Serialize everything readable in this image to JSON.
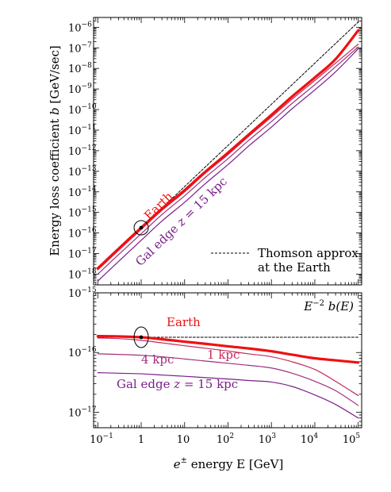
{
  "figure": {
    "xlabel_prefix": "e",
    "xlabel_sup": "±",
    "xlabel_text": " energy E [GeV]",
    "x_tick_labels": [
      "10",
      "−1",
      "1",
      "10",
      "10",
      "2",
      "10",
      "3",
      "10",
      "4",
      "10",
      "5"
    ]
  },
  "chart_data": [
    {
      "type": "line",
      "panel": "top",
      "ylabel_text": "Energy loss coefficient ",
      "ylabel_var": "b",
      "ylabel_unit": " [GeV/sec]",
      "x_scale": "log",
      "y_scale": "log",
      "xlim": [
        0.08,
        120000
      ],
      "ylim": [
        3e-19,
        3e-06
      ],
      "y_tick_exponents": [
        -18,
        -17,
        -16,
        -15,
        -14,
        -13,
        -12,
        -11,
        -10,
        -9,
        -8,
        -7,
        -6
      ],
      "x": [
        0.1,
        0.3,
        1,
        3,
        10,
        30,
        100,
        300,
        1000,
        3000,
        10000,
        30000,
        100000
      ],
      "series": [
        {
          "key": "thomson",
          "color": "#000000",
          "style": "dashed",
          "width": 1.0,
          "values": [
            1.8e-18,
            1.62e-17,
            1.8e-16,
            1.62e-15,
            1.8e-14,
            1.62e-13,
            1.8e-12,
            1.62e-11,
            1.8e-10,
            1.62e-09,
            1.8e-08,
            1.62e-07,
            1.8e-06
          ]
        },
        {
          "key": "earth",
          "name": "Earth",
          "color": "#ee1111",
          "style": "solid",
          "width": 3.2,
          "values": [
            1.9e-18,
            1.71e-17,
            1.8e-16,
            1.5e-15,
            1.2e-14,
            9.5e-14,
            8e-13,
            6.1e-12,
            5.5e-11,
            4.3e-10,
            3.6e-09,
            2.8e-08,
            7e-07
          ]
        },
        {
          "key": "1kpc",
          "color": "#c42a5a",
          "style": "solid",
          "width": 1.2,
          "values": [
            1.6e-18,
            1.42e-17,
            1.5e-16,
            1.25e-15,
            1e-14,
            8e-14,
            6.5e-13,
            5e-12,
            4.3e-11,
            3.2e-10,
            2.6e-09,
            1.8e-08,
            1.5e-07
          ]
        },
        {
          "key": "4kpc",
          "color": "#a0307e",
          "style": "solid",
          "width": 1.2,
          "values": [
            1e-18,
            8.8e-18,
            9.2e-17,
            7.8e-16,
            6.4e-15,
            5e-14,
            4.1e-13,
            3.2e-12,
            2.6e-11,
            2e-10,
            1.6e-09,
            1.2e-08,
            1.1e-07
          ]
        },
        {
          "key": "galedge",
          "name": "Gal edge z = 15 kpc",
          "color": "#7a1f8a",
          "style": "solid",
          "width": 1.2,
          "values": [
            4.6e-19,
            4.1e-18,
            4.4e-17,
            3.8e-16,
            3.1e-15,
            2.5e-14,
            2.1e-13,
            1.7e-12,
            1.4e-11,
            1.1e-10,
            9e-10,
            6.8e-09,
            9e-08
          ]
        }
      ],
      "annotations": {
        "earth_label": "Earth",
        "galedge_prefix": "Gal edge ",
        "galedge_var": "z",
        "galedge_suffix": " = 15 kpc",
        "legend_line1": "Thomson approx",
        "legend_line2": "at the Earth",
        "legend_placement": "bottom-right",
        "marker_x": 1,
        "marker_y": 1.8e-16
      }
    },
    {
      "type": "line",
      "panel": "bottom",
      "x_scale": "log",
      "y_scale": "log",
      "xlim": [
        0.08,
        120000
      ],
      "ylim": [
        5.5e-18,
        1e-15
      ],
      "y_tick_exponents": [
        -17,
        -16,
        -15
      ],
      "x": [
        0.1,
        0.3,
        1,
        3,
        10,
        30,
        100,
        300,
        1000,
        3000,
        10000,
        30000,
        100000
      ],
      "series": [
        {
          "key": "thomson",
          "color": "#000000",
          "style": "dashed",
          "width": 1.0,
          "values": [
            1.8e-16,
            1.8e-16,
            1.8e-16,
            1.8e-16,
            1.8e-16,
            1.8e-16,
            1.8e-16,
            1.8e-16,
            1.8e-16,
            1.8e-16,
            1.8e-16,
            1.8e-16,
            1.8e-16
          ]
        },
        {
          "key": "earth",
          "name": "Earth",
          "color": "#ee1111",
          "style": "solid",
          "width": 3.2,
          "values": [
            1.88e-16,
            1.86e-16,
            1.8e-16,
            1.67e-16,
            1.52e-16,
            1.4e-16,
            1.27e-16,
            1.17e-16,
            1.05e-16,
            9.2e-17,
            8e-17,
            7.4e-17,
            6.8e-17
          ]
        },
        {
          "key": "1kpc",
          "name": "1 kpc",
          "color": "#c42a5a",
          "style": "solid",
          "width": 1.2,
          "values": [
            1.75e-16,
            1.71e-16,
            1.6e-16,
            1.45e-16,
            1.3e-16,
            1.18e-16,
            1.06e-16,
            9.5e-17,
            8.5e-17,
            7e-17,
            5.2e-17,
            3.3e-17,
            1.9e-17
          ]
        },
        {
          "key": "4kpc",
          "name": "4 kpc",
          "color": "#a0307e",
          "style": "solid",
          "width": 1.2,
          "values": [
            9.5e-17,
            9.3e-17,
            9e-17,
            8.5e-17,
            7.8e-17,
            7.2e-17,
            6.6e-17,
            6.1e-17,
            5.5e-17,
            4.5e-17,
            3.3e-17,
            2.3e-17,
            1.3e-17
          ]
        },
        {
          "key": "galedge",
          "name": "Gal edge z = 15 kpc",
          "color": "#7a1f8a",
          "style": "solid",
          "width": 1.2,
          "values": [
            4.6e-17,
            4.5e-17,
            4.4e-17,
            4.2e-17,
            4e-17,
            3.8e-17,
            3.6e-17,
            3.4e-17,
            3.2e-17,
            2.7e-17,
            1.95e-17,
            1.35e-17,
            8e-18
          ]
        }
      ],
      "annotations": {
        "corner_base": "E",
        "corner_sup": "−2",
        "corner_rest": " b(E)",
        "earth_label": "Earth",
        "label_1kpc": "1 kpc",
        "label_4kpc": "4 kpc",
        "galedge_prefix": "Gal edge ",
        "galedge_var": "z",
        "galedge_suffix": " = 15 kpc",
        "marker_x": 1,
        "marker_y": 1.8e-16
      }
    }
  ]
}
